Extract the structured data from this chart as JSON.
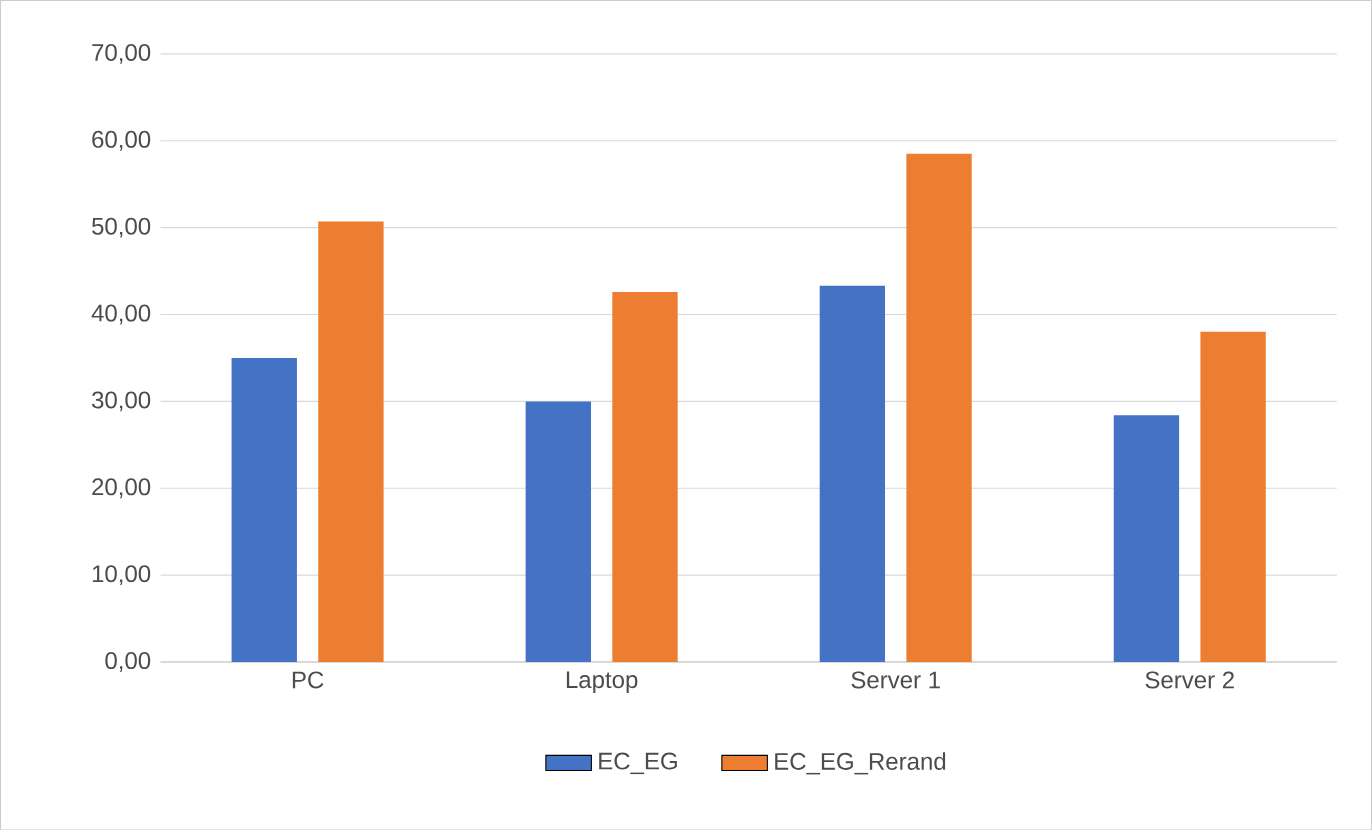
{
  "chart_data": {
    "type": "bar",
    "categories": [
      "PC",
      "Laptop",
      "Server 1",
      "Server 2"
    ],
    "series": [
      {
        "name": "EC_EG",
        "color": "#4472c4",
        "values": [
          35.0,
          30.0,
          43.3,
          28.4
        ]
      },
      {
        "name": "EC_EG_Rerand",
        "color": "#ed7d31",
        "values": [
          50.7,
          42.6,
          58.5,
          38.0
        ]
      }
    ],
    "ylim": [
      0,
      70
    ],
    "yticks": [
      {
        "value": 0,
        "label": "0,00"
      },
      {
        "value": 10,
        "label": "10,00"
      },
      {
        "value": 20,
        "label": "20,00"
      },
      {
        "value": 30,
        "label": "30,00"
      },
      {
        "value": 40,
        "label": "40,00"
      },
      {
        "value": 50,
        "label": "50,00"
      },
      {
        "value": 60,
        "label": "60,00"
      },
      {
        "value": 70,
        "label": "70,00"
      }
    ],
    "grid": "y",
    "legend": "bottom"
  }
}
